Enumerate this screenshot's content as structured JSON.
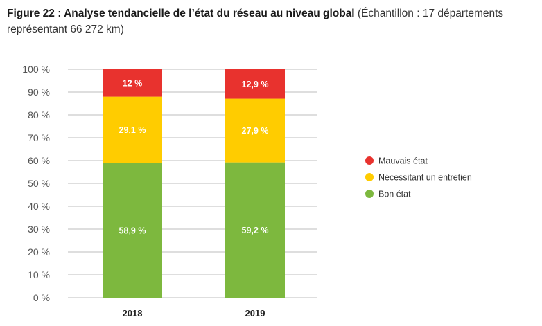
{
  "title": {
    "bold": "Figure 22 : Analyse tendancielle de l’état du réseau au niveau global",
    "rest": " (Échantillon : 17 départements représentant 66 272 km)"
  },
  "chart_data": {
    "type": "bar",
    "stacked": true,
    "categories": [
      "2018",
      "2019"
    ],
    "series": [
      {
        "name": "Bon état",
        "color": "#7db83e",
        "values": [
          58.9,
          59.2
        ],
        "labels": [
          "58,9 %",
          "59,2 %"
        ]
      },
      {
        "name": "Nécessitant un entretien",
        "color": "#ffcc00",
        "values": [
          29.1,
          27.9
        ],
        "labels": [
          "29,1 %",
          "27,9 %"
        ]
      },
      {
        "name": "Mauvais état",
        "color": "#e8322e",
        "values": [
          12,
          12.9
        ],
        "labels": [
          "12 %",
          "12,9 %"
        ]
      }
    ],
    "legend_order": [
      "Mauvais état",
      "Nécessitant un entretien",
      "Bon état"
    ],
    "ylim": [
      0,
      100
    ],
    "yticks": [
      {
        "value": 0,
        "label": "0 %"
      },
      {
        "value": 10,
        "label": "10 %"
      },
      {
        "value": 20,
        "label": "20 %"
      },
      {
        "value": 30,
        "label": "30 %"
      },
      {
        "value": 40,
        "label": "40 %"
      },
      {
        "value": 50,
        "label": "50 %"
      },
      {
        "value": 60,
        "label": "60 %"
      },
      {
        "value": 70,
        "label": "70 %"
      },
      {
        "value": 80,
        "label": "80 %"
      },
      {
        "value": 90,
        "label": "90 %"
      },
      {
        "value": 100,
        "label": "100 %"
      }
    ],
    "grid": true,
    "legend_position": "right"
  }
}
